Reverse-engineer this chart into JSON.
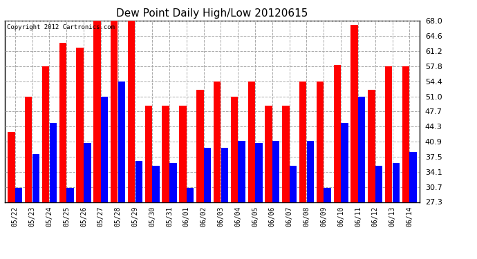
{
  "title": "Dew Point Daily High/Low 20120615",
  "copyright": "Copyright 2012 Cartronics.com",
  "dates": [
    "05/22",
    "05/23",
    "05/24",
    "05/25",
    "05/26",
    "05/27",
    "05/28",
    "05/29",
    "05/30",
    "05/31",
    "06/01",
    "06/02",
    "06/03",
    "06/04",
    "06/05",
    "06/06",
    "06/07",
    "06/08",
    "06/09",
    "06/10",
    "06/11",
    "06/12",
    "06/13",
    "06/14"
  ],
  "highs": [
    43.0,
    51.0,
    57.8,
    63.0,
    62.0,
    68.0,
    68.0,
    68.0,
    49.0,
    49.0,
    49.0,
    52.5,
    54.4,
    51.0,
    54.4,
    49.0,
    49.0,
    54.4,
    54.4,
    58.0,
    67.0,
    52.5,
    57.8,
    57.8
  ],
  "lows": [
    30.5,
    38.0,
    45.0,
    30.5,
    40.5,
    51.0,
    54.4,
    36.5,
    35.5,
    36.0,
    30.5,
    39.5,
    39.5,
    41.0,
    40.5,
    41.0,
    35.5,
    41.0,
    30.5,
    45.0,
    51.0,
    35.5,
    36.0,
    38.5
  ],
  "high_color": "#ff0000",
  "low_color": "#0000ff",
  "bg_color": "#ffffff",
  "grid_color": "#aaaaaa",
  "ylim_min": 27.3,
  "ylim_max": 68.0,
  "yticks": [
    27.3,
    30.7,
    34.1,
    37.5,
    40.9,
    44.3,
    47.7,
    51.0,
    54.4,
    57.8,
    61.2,
    64.6,
    68.0
  ]
}
